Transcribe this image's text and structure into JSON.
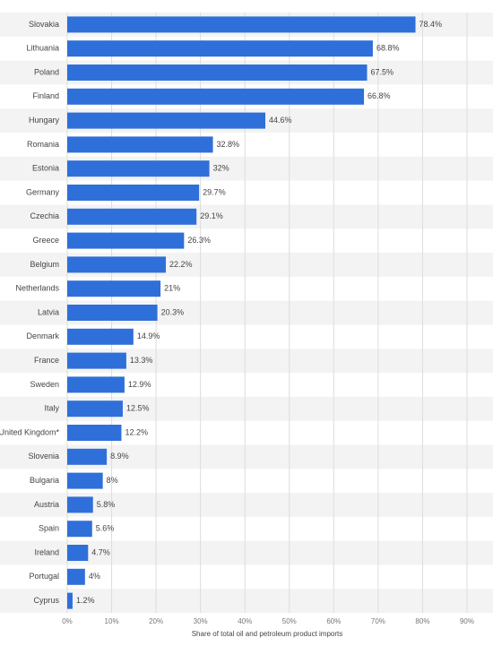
{
  "chart_data": {
    "type": "hbar",
    "categories": [
      "Slovakia",
      "Lithuania",
      "Poland",
      "Finland",
      "Hungary",
      "Romania",
      "Estonia",
      "Germany",
      "Czechia",
      "Greece",
      "Belgium",
      "Netherlands",
      "Latvia",
      "Denmark",
      "France",
      "Sweden",
      "Italy",
      "United Kingdom*",
      "Slovenia",
      "Bulgaria",
      "Austria",
      "Spain",
      "Ireland",
      "Portugal",
      "Cyprus"
    ],
    "values": [
      78.4,
      68.8,
      67.5,
      66.8,
      44.6,
      32.8,
      32,
      29.7,
      29.1,
      26.3,
      22.2,
      21,
      20.3,
      14.9,
      13.3,
      12.9,
      12.5,
      12.2,
      8.9,
      8,
      5.8,
      5.6,
      4.7,
      4,
      1.2
    ],
    "value_labels": [
      "78.4%",
      "68.8%",
      "67.5%",
      "66.8%",
      "44.6%",
      "32.8%",
      "32%",
      "29.7%",
      "29.1%",
      "26.3%",
      "22.2%",
      "21%",
      "20.3%",
      "14.9%",
      "13.3%",
      "12.9%",
      "12.5%",
      "12.2%",
      "8.9%",
      "8%",
      "5.8%",
      "5.6%",
      "4.7%",
      "4%",
      "1.2%"
    ],
    "color": "#2f6fd9",
    "xlim": [
      0,
      90
    ],
    "xticks": [
      {
        "value": 0,
        "label": "0%"
      },
      {
        "value": 10,
        "label": "10%"
      },
      {
        "value": 20,
        "label": "20%"
      },
      {
        "value": 30,
        "label": "30%"
      },
      {
        "value": 40,
        "label": "40%"
      },
      {
        "value": 50,
        "label": "50%"
      },
      {
        "value": 60,
        "label": "60%"
      },
      {
        "value": 70,
        "label": "70%"
      },
      {
        "value": 80,
        "label": "80%"
      },
      {
        "value": 90,
        "label": "90%"
      }
    ],
    "xlabel": "Share of total oil and petroleum product imports",
    "grid": true
  }
}
